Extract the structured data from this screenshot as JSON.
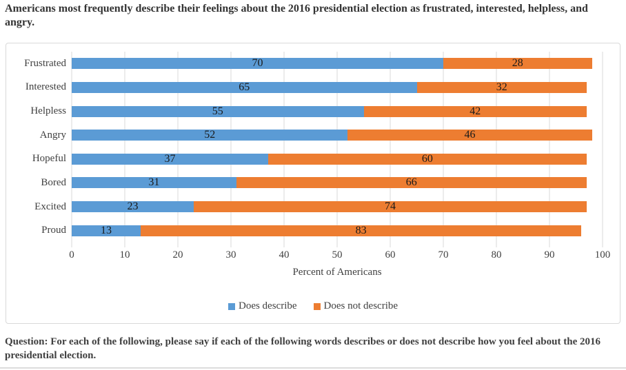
{
  "title": "Americans most frequently describe their feelings about the 2016 presidential election as frustrated, interested, helpless, and angry.",
  "footer": "Question: For each of the following, please say if each of the following words describes or does not describe how you feel about the 2016 presidential election.",
  "colors": {
    "series_blue": "#5B9BD5",
    "series_orange": "#ED7D31",
    "gridline": "#D9D9D9",
    "card_border": "#D9D9D9",
    "title_text": "#333333",
    "axis_text": "#404040",
    "bar_label_text": "#1A1A1A"
  },
  "chart_data": {
    "type": "bar",
    "orientation": "horizontal",
    "stacked": true,
    "categories": [
      "Frustrated",
      "Interested",
      "Helpless",
      "Angry",
      "Hopeful",
      "Bored",
      "Excited",
      "Proud"
    ],
    "series": [
      {
        "name": "Does describe",
        "color": "#5B9BD5",
        "values": [
          70,
          65,
          55,
          52,
          37,
          31,
          23,
          13
        ]
      },
      {
        "name": "Does not describe",
        "color": "#ED7D31",
        "values": [
          28,
          32,
          42,
          46,
          60,
          66,
          74,
          83
        ]
      }
    ],
    "xlabel": "Percent of Americans",
    "xlim": [
      0,
      100
    ],
    "xticks": [
      0,
      10,
      20,
      30,
      40,
      50,
      60,
      70,
      80,
      90,
      100
    ],
    "grid": true,
    "data_labels": "centered",
    "legend_position": "bottom"
  }
}
